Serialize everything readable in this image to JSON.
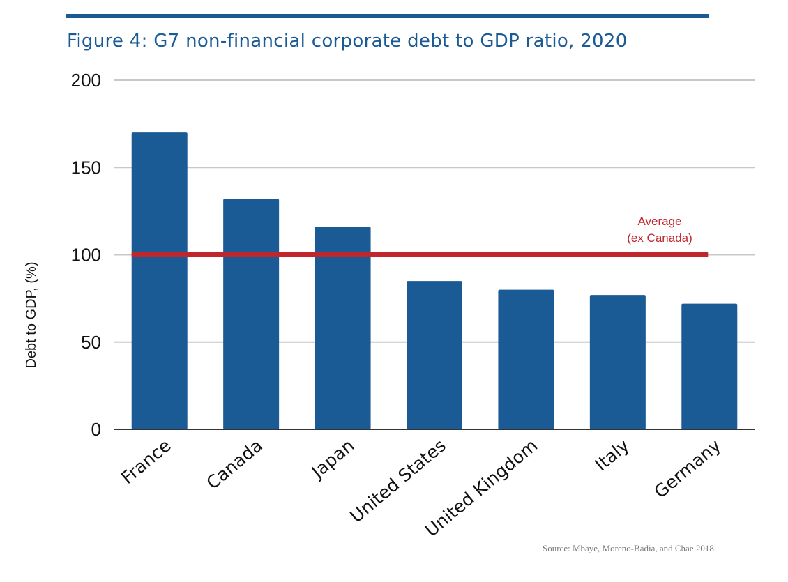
{
  "colors": {
    "accent": "#1b5b95",
    "bar": "#1b5b95",
    "average_line": "#c0272d",
    "grid": "#c8c8c8",
    "axis": "#333333",
    "source_text": "#777777"
  },
  "figure": {
    "title": "Figure 4: G7 non-financial corporate debt to GDP ratio, 2020",
    "source": "Source: Mbaye, Moreno-Badia, and Chae 2018."
  },
  "chart_data": {
    "type": "bar",
    "title": "Figure 4: G7 non-financial corporate debt to GDP ratio, 2020",
    "xlabel": "",
    "ylabel": "Debt to GDP, (%)",
    "ylim": [
      0,
      200
    ],
    "yticks": [
      0,
      50,
      100,
      150,
      200
    ],
    "grid": true,
    "categories": [
      "France",
      "Canada",
      "Japan",
      "United States",
      "United Kingdom",
      "Italy",
      "Germany"
    ],
    "values": [
      170,
      132,
      116,
      85,
      80,
      77,
      72
    ],
    "reference_line": {
      "label_lines": [
        "Average",
        "(ex Canada)"
      ],
      "value": 100,
      "spans_categories": [
        "France",
        "Germany"
      ]
    }
  }
}
